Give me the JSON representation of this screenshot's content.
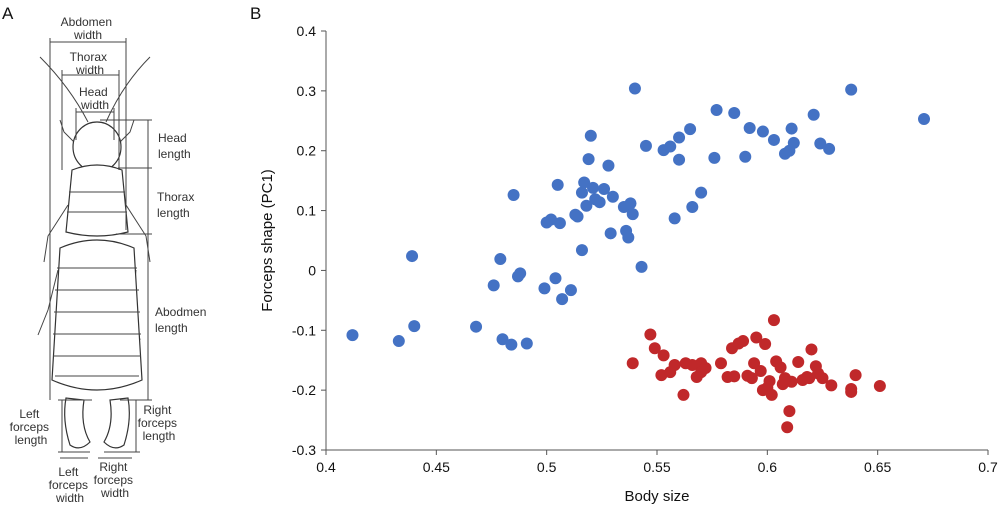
{
  "panel_a": {
    "label": "A",
    "annotations": {
      "abdomen_width": [
        "Abdomen",
        "width"
      ],
      "thorax_width": [
        "Thorax",
        "width"
      ],
      "head_width": [
        "Head",
        "width"
      ],
      "head_length": [
        "Head",
        "length"
      ],
      "thorax_length": [
        "Thorax",
        "length"
      ],
      "abdomen_length": [
        "Abodmen",
        "length"
      ],
      "left_forceps_length": [
        "Left",
        "forceps",
        "length"
      ],
      "right_forceps_length": [
        "Right",
        "forceps",
        "length"
      ],
      "left_forceps_width": [
        "Left",
        "forceps",
        "width"
      ],
      "right_forceps_width": [
        "Right",
        "forceps",
        "width"
      ]
    }
  },
  "chart_data": {
    "type": "scatter",
    "panel_label": "B",
    "xlabel": "Body size",
    "ylabel": "Forceps shape (PC1)",
    "xlim": [
      0.4,
      0.7
    ],
    "ylim": [
      -0.3,
      0.4
    ],
    "x_ticks": [
      "0.4",
      "0.45",
      "0.5",
      "0.55",
      "0.6",
      "0.65",
      "0.7"
    ],
    "y_ticks": [
      "0.4",
      "0.3",
      "0.2",
      "0.1",
      "0",
      "-0.1",
      "-0.2",
      "-0.3"
    ],
    "grid": false,
    "legend": "none",
    "series": [
      {
        "color": "#4472c4",
        "points": [
          [
            0.412,
            -0.108
          ],
          [
            0.433,
            -0.118
          ],
          [
            0.439,
            0.024
          ],
          [
            0.44,
            -0.093
          ],
          [
            0.468,
            -0.094
          ],
          [
            0.476,
            -0.025
          ],
          [
            0.479,
            0.019
          ],
          [
            0.48,
            -0.115
          ],
          [
            0.484,
            -0.124
          ],
          [
            0.485,
            0.126
          ],
          [
            0.487,
            -0.01
          ],
          [
            0.488,
            -0.005
          ],
          [
            0.491,
            -0.122
          ],
          [
            0.499,
            -0.03
          ],
          [
            0.5,
            0.08
          ],
          [
            0.502,
            0.085
          ],
          [
            0.504,
            -0.013
          ],
          [
            0.505,
            0.143
          ],
          [
            0.506,
            0.079
          ],
          [
            0.507,
            -0.048
          ],
          [
            0.511,
            -0.033
          ],
          [
            0.513,
            0.093
          ],
          [
            0.514,
            0.09
          ],
          [
            0.516,
            0.034
          ],
          [
            0.516,
            0.13
          ],
          [
            0.517,
            0.147
          ],
          [
            0.518,
            0.108
          ],
          [
            0.519,
            0.186
          ],
          [
            0.52,
            0.225
          ],
          [
            0.521,
            0.138
          ],
          [
            0.522,
            0.119
          ],
          [
            0.524,
            0.114
          ],
          [
            0.526,
            0.136
          ],
          [
            0.528,
            0.175
          ],
          [
            0.529,
            0.062
          ],
          [
            0.53,
            0.123
          ],
          [
            0.535,
            0.106
          ],
          [
            0.536,
            0.066
          ],
          [
            0.537,
            0.055
          ],
          [
            0.538,
            0.112
          ],
          [
            0.539,
            0.094
          ],
          [
            0.54,
            0.304
          ],
          [
            0.543,
            0.006
          ],
          [
            0.545,
            0.208
          ],
          [
            0.553,
            0.201
          ],
          [
            0.556,
            0.207
          ],
          [
            0.558,
            0.087
          ],
          [
            0.56,
            0.185
          ],
          [
            0.56,
            0.222
          ],
          [
            0.565,
            0.236
          ],
          [
            0.566,
            0.106
          ],
          [
            0.57,
            0.13
          ],
          [
            0.576,
            0.188
          ],
          [
            0.577,
            0.268
          ],
          [
            0.585,
            0.263
          ],
          [
            0.59,
            0.19
          ],
          [
            0.592,
            0.238
          ],
          [
            0.598,
            0.232
          ],
          [
            0.603,
            0.218
          ],
          [
            0.608,
            0.195
          ],
          [
            0.61,
            0.2
          ],
          [
            0.611,
            0.237
          ],
          [
            0.612,
            0.213
          ],
          [
            0.621,
            0.26
          ],
          [
            0.624,
            0.212
          ],
          [
            0.628,
            0.203
          ],
          [
            0.638,
            0.302
          ],
          [
            0.671,
            0.253
          ]
        ]
      },
      {
        "color": "#c0282a",
        "points": [
          [
            0.539,
            -0.155
          ],
          [
            0.547,
            -0.107
          ],
          [
            0.549,
            -0.13
          ],
          [
            0.552,
            -0.175
          ],
          [
            0.553,
            -0.142
          ],
          [
            0.556,
            -0.17
          ],
          [
            0.558,
            -0.158
          ],
          [
            0.562,
            -0.208
          ],
          [
            0.563,
            -0.155
          ],
          [
            0.566,
            -0.158
          ],
          [
            0.568,
            -0.178
          ],
          [
            0.57,
            -0.155
          ],
          [
            0.57,
            -0.17
          ],
          [
            0.572,
            -0.163
          ],
          [
            0.579,
            -0.155
          ],
          [
            0.582,
            -0.178
          ],
          [
            0.584,
            -0.13
          ],
          [
            0.585,
            -0.177
          ],
          [
            0.587,
            -0.122
          ],
          [
            0.589,
            -0.118
          ],
          [
            0.591,
            -0.176
          ],
          [
            0.593,
            -0.18
          ],
          [
            0.594,
            -0.155
          ],
          [
            0.595,
            -0.112
          ],
          [
            0.597,
            -0.168
          ],
          [
            0.598,
            -0.2
          ],
          [
            0.599,
            -0.123
          ],
          [
            0.6,
            -0.196
          ],
          [
            0.601,
            -0.185
          ],
          [
            0.602,
            -0.208
          ],
          [
            0.603,
            -0.083
          ],
          [
            0.604,
            -0.152
          ],
          [
            0.606,
            -0.162
          ],
          [
            0.607,
            -0.19
          ],
          [
            0.608,
            -0.18
          ],
          [
            0.609,
            -0.262
          ],
          [
            0.61,
            -0.235
          ],
          [
            0.611,
            -0.186
          ],
          [
            0.614,
            -0.153
          ],
          [
            0.616,
            -0.183
          ],
          [
            0.618,
            -0.178
          ],
          [
            0.619,
            -0.18
          ],
          [
            0.62,
            -0.132
          ],
          [
            0.622,
            -0.16
          ],
          [
            0.623,
            -0.172
          ],
          [
            0.625,
            -0.18
          ],
          [
            0.629,
            -0.192
          ],
          [
            0.638,
            -0.198
          ],
          [
            0.638,
            -0.203
          ],
          [
            0.64,
            -0.175
          ],
          [
            0.651,
            -0.193
          ]
        ]
      }
    ]
  }
}
